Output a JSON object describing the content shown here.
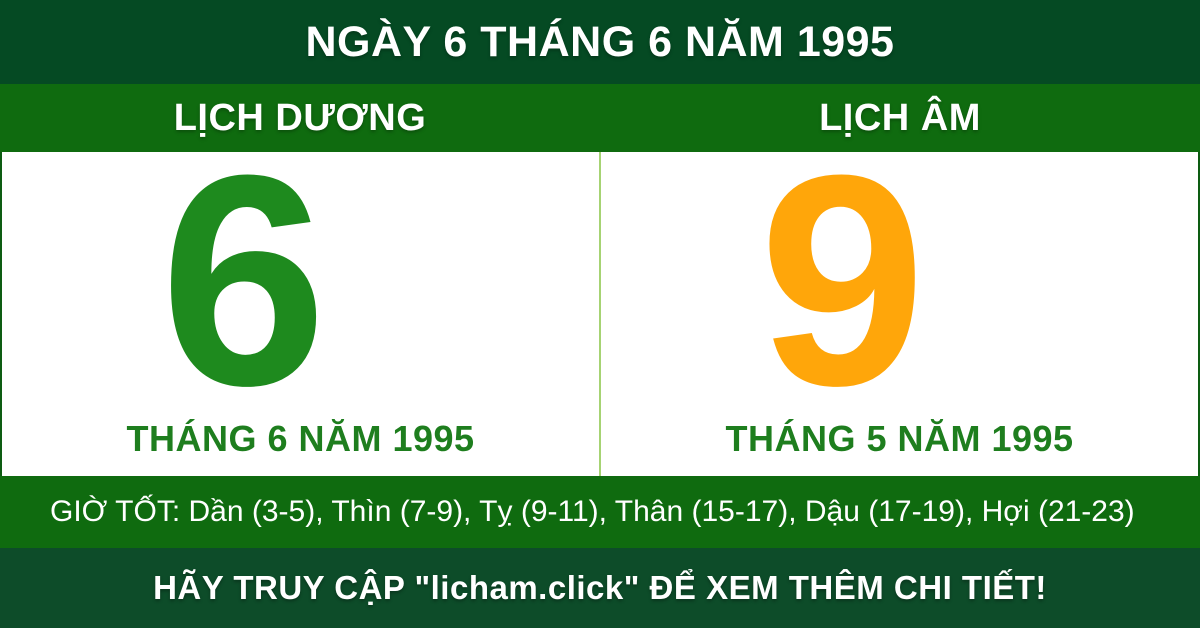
{
  "header": {
    "title": "NGÀY 6 THÁNG 6 NĂM 1995"
  },
  "tabs": {
    "solar_label": "LỊCH DƯƠNG",
    "lunar_label": "LỊCH ÂM"
  },
  "solar": {
    "day": "6",
    "month_year": "THÁNG 6 NĂM 1995"
  },
  "lunar": {
    "day": "9",
    "month_year": "THÁNG 5 NĂM 1995"
  },
  "good_hours": {
    "text": "GIỜ TỐT: Dần (3-5), Thìn (7-9), Tỵ (9-11), Thân (15-17), Dậu (17-19), Hợi (21-23)"
  },
  "footer": {
    "text": "HÃY TRUY CẬP \"licham.click\" ĐỂ XEM THÊM CHI TIẾT!",
    "site": "licham.click"
  },
  "colors": {
    "header_bg": "#054a23",
    "band_bg": "#0f6b0f",
    "hours_bg": "#0f6b0f",
    "footer_bg": "#0d4c29",
    "solar_day": "#1e8a1e",
    "lunar_day": "#ffa60a",
    "month_color": "#1e7e1e",
    "divider": "#a6d373",
    "edge_border": "#0d5c12",
    "text_light": "#ffffff"
  }
}
